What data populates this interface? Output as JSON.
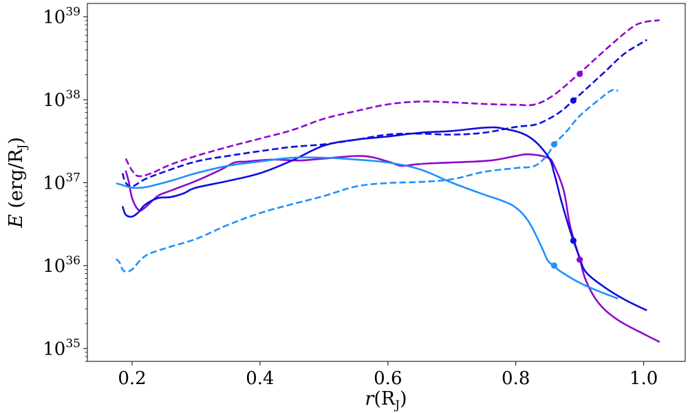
{
  "chart_data": {
    "type": "line",
    "xlabel": "r(R_J)",
    "ylabel": "E (erg/R_J)",
    "xlim": [
      0.13,
      1.065
    ],
    "ylim": [
      7e+34,
      1.45e+39
    ],
    "yscale": "log",
    "grid": false,
    "legend": "none",
    "xticks": [
      {
        "value": 0.2,
        "label": "0.2"
      },
      {
        "value": 0.4,
        "label": "0.4"
      },
      {
        "value": 0.6,
        "label": "0.6"
      },
      {
        "value": 0.8,
        "label": "0.8"
      },
      {
        "value": 1.0,
        "label": "1.0"
      }
    ],
    "yticks": [
      {
        "value": 1e+35,
        "exp": "35"
      },
      {
        "value": 1e+36,
        "exp": "36"
      },
      {
        "value": 1e+37,
        "exp": "37"
      },
      {
        "value": 1e+38,
        "exp": "38"
      },
      {
        "value": 1e+39,
        "exp": "39"
      }
    ],
    "series": [
      {
        "name": "purple-solid",
        "color": "#8B08CF",
        "dash": false,
        "x": [
          0.19,
          0.195,
          0.2,
          0.21,
          0.22,
          0.24,
          0.26,
          0.3,
          0.34,
          0.36,
          0.38,
          0.42,
          0.46,
          0.5,
          0.56,
          0.6,
          0.62,
          0.64,
          0.66,
          0.7,
          0.76,
          0.8,
          0.82,
          0.85,
          0.86,
          0.875,
          0.885,
          0.9,
          0.91,
          0.93,
          0.96,
          1.0,
          1.025
        ],
        "y": [
          1.4e+37,
          1e+37,
          6.5e+36,
          4.7e+36,
          5e+36,
          6.9e+36,
          8e+36,
          1.05e+37,
          1.45e+37,
          1.75e+37,
          1.8e+37,
          1.9e+37,
          1.85e+37,
          1.95e+37,
          2.1e+37,
          1.8e+37,
          1.6e+37,
          1.65e+37,
          1.7e+37,
          1.75e+37,
          1.85e+37,
          2.1e+37,
          2.2e+37,
          2e+37,
          1.6e+37,
          8e+36,
          3e+36,
          1.2e+36,
          6.5e+35,
          3.5e+35,
          2.2e+35,
          1.5e+35,
          1.2e+35
        ]
      },
      {
        "name": "purple-dashed",
        "color": "#8B08CF",
        "dash": true,
        "x": [
          0.19,
          0.2,
          0.21,
          0.23,
          0.26,
          0.3,
          0.35,
          0.4,
          0.45,
          0.5,
          0.55,
          0.6,
          0.65,
          0.7,
          0.75,
          0.8,
          0.83,
          0.86,
          0.9,
          0.94,
          0.98,
          1.0,
          1.025
        ],
        "y": [
          1.95e+37,
          1.4e+37,
          1.2e+37,
          1.3e+37,
          1.65e+37,
          2.1e+37,
          2.7e+37,
          3.4e+37,
          4.3e+37,
          5.9e+37,
          7.3e+37,
          8.8e+37,
          9.5e+37,
          9.3e+37,
          8.9e+37,
          8.7e+37,
          8.8e+37,
          1.15e+38,
          2.1e+38,
          4e+38,
          7.3e+38,
          8.6e+38,
          9.1e+38
        ]
      },
      {
        "name": "blue-solid",
        "color": "#0D0DDF",
        "dash": false,
        "x": [
          0.185,
          0.19,
          0.2,
          0.21,
          0.22,
          0.24,
          0.26,
          0.28,
          0.3,
          0.35,
          0.4,
          0.45,
          0.5,
          0.55,
          0.6,
          0.65,
          0.7,
          0.75,
          0.78,
          0.82,
          0.85,
          0.86,
          0.87,
          0.88,
          0.89,
          0.9,
          0.91,
          0.94,
          0.97,
          1.0,
          1.005
        ],
        "y": [
          5.2e+36,
          4.1e+36,
          3.9e+36,
          4.4e+36,
          5.4e+36,
          6.5e+36,
          6.7e+36,
          7.4e+36,
          8.7e+36,
          1.05e+37,
          1.3e+37,
          1.85e+37,
          2.8e+37,
          3.3e+37,
          3.6e+37,
          4e+37,
          4.2e+37,
          4.6e+37,
          4.5e+37,
          3.6e+37,
          2.1e+37,
          1.3e+37,
          6.5e+36,
          3.5e+36,
          2e+36,
          1.25e+36,
          8.3e+35,
          5.4e+35,
          3.9e+35,
          3e+35,
          2.9e+35
        ]
      },
      {
        "name": "blue-dashed",
        "color": "#0D0DDF",
        "dash": true,
        "x": [
          0.185,
          0.19,
          0.2,
          0.22,
          0.25,
          0.3,
          0.35,
          0.4,
          0.45,
          0.5,
          0.55,
          0.6,
          0.65,
          0.7,
          0.75,
          0.8,
          0.83,
          0.85,
          0.87,
          0.89,
          0.91,
          0.94,
          0.97,
          1.0,
          1.005
        ],
        "y": [
          1.3e+37,
          1e+37,
          9e+36,
          1.1e+37,
          1.35e+37,
          1.8e+37,
          2.1e+37,
          2.4e+37,
          2.7e+37,
          2.9e+37,
          3.3e+37,
          3.8e+37,
          3.9e+37,
          3.8e+37,
          4e+37,
          4.7e+37,
          5e+37,
          5.8e+37,
          7.2e+37,
          9.8e+37,
          1.35e+38,
          2.2e+38,
          3.6e+38,
          5e+38,
          5.3e+38
        ]
      },
      {
        "name": "light-blue-solid",
        "color": "#1E90FF",
        "dash": false,
        "x": [
          0.175,
          0.18,
          0.19,
          0.2,
          0.22,
          0.26,
          0.3,
          0.35,
          0.4,
          0.45,
          0.5,
          0.55,
          0.6,
          0.65,
          0.7,
          0.75,
          0.78,
          0.8,
          0.82,
          0.84,
          0.85,
          0.86,
          0.87,
          0.9,
          0.93,
          0.96
        ],
        "y": [
          9.8e+36,
          9.6e+36,
          9.1e+36,
          8.7e+36,
          8.8e+36,
          1.05e+37,
          1.3e+37,
          1.6e+37,
          1.8e+37,
          2e+37,
          2e+37,
          1.9e+37,
          1.75e+37,
          1.45e+37,
          1e+37,
          7.2e+36,
          6e+36,
          5e+36,
          3.4e+36,
          1.7e+36,
          1.15e+36,
          9.9e+35,
          8.5e+35,
          6.2e+35,
          4.9e+35,
          4e+35
        ]
      },
      {
        "name": "light-blue-dashed",
        "color": "#1E90FF",
        "dash": true,
        "x": [
          0.175,
          0.18,
          0.185,
          0.19,
          0.2,
          0.22,
          0.25,
          0.3,
          0.35,
          0.4,
          0.45,
          0.5,
          0.55,
          0.6,
          0.65,
          0.7,
          0.75,
          0.8,
          0.83,
          0.85,
          0.86,
          0.88,
          0.9,
          0.93,
          0.95,
          0.96
        ],
        "y": [
          1.2e+36,
          1.1e+36,
          9e+35,
          8.5e+35,
          9e+35,
          1.3e+36,
          1.6e+36,
          2.1e+36,
          3.1e+36,
          4.3e+36,
          5.5e+36,
          6.9e+36,
          9e+36,
          9.9e+36,
          1.02e+37,
          1.1e+37,
          1.35e+37,
          1.5e+37,
          1.6e+37,
          2.2e+37,
          2.9e+37,
          4.2e+37,
          6.4e+37,
          1e+38,
          1.3e+38,
          1.28e+38
        ]
      }
    ],
    "markers": [
      {
        "series": "purple-dashed",
        "x": 0.9,
        "y": 2.05e+38
      },
      {
        "series": "purple-solid",
        "x": 0.9,
        "y": 1.18e+36
      },
      {
        "series": "blue-dashed",
        "x": 0.89,
        "y": 9.8e+37
      },
      {
        "series": "blue-solid",
        "x": 0.89,
        "y": 2e+36
      },
      {
        "series": "light-blue-dashed",
        "x": 0.86,
        "y": 2.9e+37
      },
      {
        "series": "light-blue-solid",
        "x": 0.86,
        "y": 1e+36
      }
    ]
  }
}
